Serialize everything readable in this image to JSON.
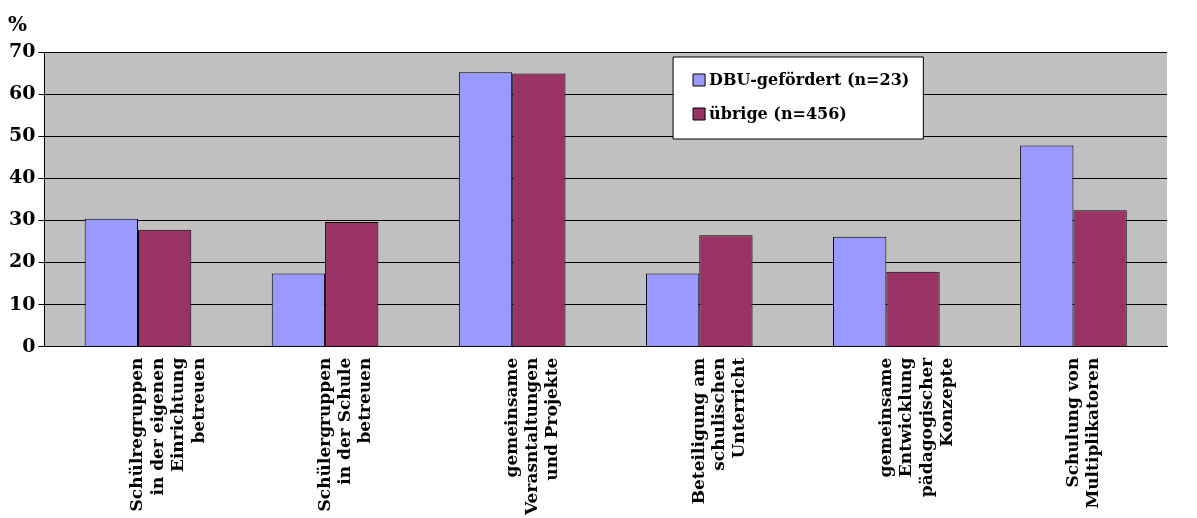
{
  "chart_data": {
    "type": "bar",
    "ylabel": "%",
    "categories": [
      "Schülregruppen\nin der eigenen\nEinrichtung\nbetreuen",
      "Schülergruppen\nin der Schule\nbetreuen",
      "gemeinsame\nVerasntaltungen\nund Projekte",
      "Beteiligung am\nschulischen\nUnterricht",
      "gemeinsame\nEntwicklung\npädagogischer\nKonzepte",
      "Schulung von\nMultiplikatoren"
    ],
    "series": [
      {
        "name": "DBU-gefördert (n=23)",
        "color": "#9999ff",
        "values": [
          30.4,
          17.4,
          65.2,
          17.4,
          26.1,
          47.8
        ]
      },
      {
        "name": "übrige (n=456)",
        "color": "#993366",
        "values": [
          27.8,
          29.6,
          64.9,
          26.5,
          17.8,
          32.4
        ]
      }
    ],
    "ylim": [
      0,
      70
    ],
    "yticks": [
      0,
      10,
      20,
      30,
      40,
      50,
      60,
      70
    ],
    "grid": "y",
    "legend": "top right"
  }
}
